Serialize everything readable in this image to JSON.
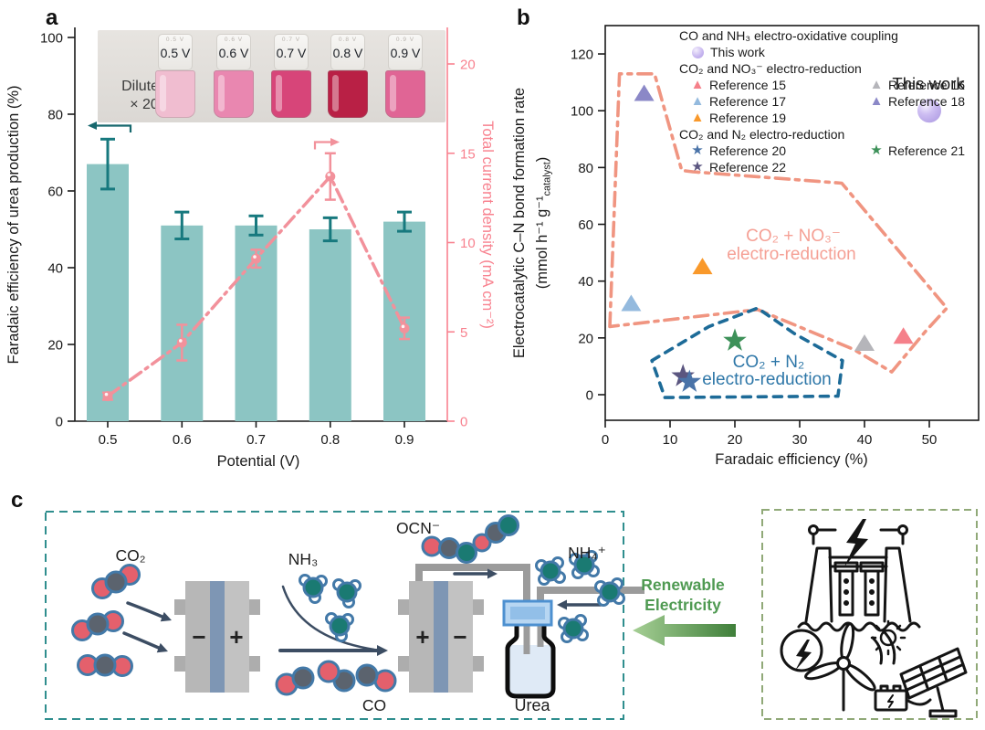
{
  "panels": {
    "a": "a",
    "b": "b",
    "c": "c"
  },
  "panel_a": {
    "inset": {
      "note_line1": "Diluted",
      "note_line2": "× 20",
      "vials": [
        {
          "label": "0.5 V",
          "liquid_color": "#f0bdd0"
        },
        {
          "label": "0.6 V",
          "liquid_color": "#e987b0"
        },
        {
          "label": "0.7 V",
          "liquid_color": "#d74579"
        },
        {
          "label": "0.8 V",
          "liquid_color": "#b92045"
        },
        {
          "label": "0.9 V",
          "liquid_color": "#e06595"
        }
      ]
    }
  },
  "chart_data": [
    {
      "panel": "a",
      "type": "bar",
      "categories": [
        "0.5",
        "0.6",
        "0.7",
        "0.8",
        "0.9"
      ],
      "xlabel": "Potential (V)",
      "ylabel_left": "Faradaic efficiency of urea production (%)",
      "ylabel_right": "Total current density (mA cm⁻²)",
      "ylim_left": [
        0,
        102
      ],
      "yticks_left": [
        0,
        20,
        40,
        60,
        80,
        100
      ],
      "ylim_right": [
        0,
        22
      ],
      "yticks_right": [
        0,
        5,
        10,
        15,
        20
      ],
      "series": [
        {
          "name": "Faradaic efficiency",
          "type": "bar",
          "axis": "left",
          "color": "#8cc5c3",
          "error_color": "#17797e",
          "values": [
            67,
            51,
            51,
            50,
            52
          ],
          "errors": [
            6.5,
            3.5,
            2.5,
            3,
            2.5
          ]
        },
        {
          "name": "Total current density",
          "type": "line",
          "axis": "right",
          "color": "#f2919b",
          "values": [
            1.4,
            4.4,
            9.1,
            13.7,
            5.2
          ],
          "errors": [
            0.2,
            1.0,
            0.5,
            1.3,
            0.6
          ]
        }
      ]
    },
    {
      "panel": "b",
      "type": "scatter",
      "xlabel": "Faradaic efficiency (%)",
      "ylabel_line1": "Electrocatalytic C–N bond formation rate",
      "ylabel_line2_pre": "(mmol h⁻¹ g⁻¹",
      "ylabel_line2_sub": "catalyst",
      "ylabel_line2_post": ")",
      "annotation": "This work",
      "xlim": [
        0,
        57.5
      ],
      "xticks": [
        0,
        10,
        20,
        30,
        40,
        50
      ],
      "ylim": [
        -9,
        130
      ],
      "yticks": [
        0,
        20,
        40,
        60,
        80,
        100,
        120
      ],
      "points": [
        {
          "label": "Reference 15",
          "group": "CO₂ and NO₃⁻ electro-reduction",
          "marker": "triangle",
          "color": "#f5808a",
          "x": 46,
          "y": 20.5
        },
        {
          "label": "Reference 16",
          "group": "CO₂ and NO₃⁻ electro-reduction",
          "marker": "triangle",
          "color": "#b5b5ba",
          "x": 40,
          "y": 18
        },
        {
          "label": "Reference 17",
          "group": "CO₂ and NO₃⁻ electro-reduction",
          "marker": "triangle",
          "color": "#94bade",
          "x": 4,
          "y": 32
        },
        {
          "label": "Reference 18",
          "group": "CO₂ and NO₃⁻ electro-reduction",
          "marker": "triangle",
          "color": "#8b88c7",
          "x": 6,
          "y": 106
        },
        {
          "label": "Reference 19",
          "group": "CO₂ and NO₃⁻ electro-reduction",
          "marker": "triangle",
          "color": "#f9992b",
          "x": 15,
          "y": 45
        },
        {
          "label": "Reference 22",
          "group": "CO₂ and N₂ electro-reduction",
          "marker": "star",
          "color": "#5b5680",
          "x": 12,
          "y": 6.5
        },
        {
          "label": "Reference 21",
          "group": "CO₂ and N₂ electro-reduction",
          "marker": "star",
          "color": "#3d9159",
          "x": 20,
          "y": 19
        },
        {
          "label": "Reference 20",
          "group": "CO₂ and N₂ electro-reduction",
          "marker": "star",
          "color": "#4a73a8",
          "x": 13,
          "y": 4.5
        },
        {
          "label": "This work",
          "group": "CO and NH₃ electro-oxidative coupling",
          "marker": "sphere",
          "color": "#c6b5ef",
          "x": 50,
          "y": 100
        }
      ],
      "regions": [
        {
          "name": "CO2 + NO3- electro-reduction",
          "label_line1": "CO₂ + NO₃⁻",
          "label_line2": "electro-reduction",
          "style": "dashdot",
          "color": "#f09581",
          "label_color": "#f5a095",
          "polygon": [
            [
              0.7,
              24
            ],
            [
              2.2,
              113
            ],
            [
              7.6,
              113
            ],
            [
              11.8,
              79
            ],
            [
              13.5,
              78.5
            ],
            [
              36.5,
              74.5
            ],
            [
              52.7,
              30.5
            ],
            [
              49.3,
              22
            ],
            [
              44.2,
              8
            ],
            [
              38.3,
              16
            ],
            [
              23.5,
              30
            ]
          ]
        },
        {
          "name": "CO2 + N2 electro-reduction",
          "label_line1": "CO₂ + N₂",
          "label_line2": "electro-reduction",
          "style": "dashed",
          "color": "#1d6b98",
          "label_color": "#2e77a8",
          "polygon": [
            [
              7.2,
              12
            ],
            [
              16,
              24
            ],
            [
              23.5,
              30.5
            ],
            [
              29.2,
              21.5
            ],
            [
              36.6,
              12
            ],
            [
              35.9,
              -0.5
            ],
            [
              9.2,
              -1
            ]
          ]
        }
      ],
      "legend": {
        "groups": [
          {
            "header": "CO and NH₃ electro-oxidative coupling",
            "entries": [
              {
                "marker": "sphere",
                "color": "#c6b5ef",
                "label": "This work"
              }
            ]
          },
          {
            "header": "CO₂ and NO₃⁻ electro-reduction",
            "entries": [
              {
                "marker": "triangle",
                "color": "#f5808a",
                "label": "Reference 15"
              },
              {
                "marker": "triangle",
                "color": "#b5b5ba",
                "label": "Reference 16"
              },
              {
                "marker": "triangle",
                "color": "#94bade",
                "label": "Reference 17"
              },
              {
                "marker": "triangle",
                "color": "#8b88c7",
                "label": "Reference 18"
              },
              {
                "marker": "triangle",
                "color": "#f9992b",
                "label": "Reference 19"
              }
            ]
          },
          {
            "header": "CO₂ and N₂ electro-reduction",
            "entries": [
              {
                "marker": "star",
                "color": "#4a73a8",
                "label": "Reference 20"
              },
              {
                "marker": "star",
                "color": "#3d9159",
                "label": "Reference 21"
              },
              {
                "marker": "star",
                "color": "#5b5680",
                "label": "Reference 22"
              }
            ]
          }
        ]
      }
    }
  ],
  "panel_c": {
    "labels": {
      "co2": "CO₂",
      "nh3": "NH₃",
      "co": "CO",
      "ocn": "OCN⁻",
      "nh4": "NH₄⁺",
      "urea": "Urea",
      "cell1_left": "−",
      "cell1_right": "+",
      "cell2_left": "+",
      "cell2_right": "−",
      "renewable_line1": "Renewable",
      "renewable_line2": "Electricity"
    },
    "colors": {
      "box_left_border": "#2f8e8e",
      "box_right_border": "#90a978",
      "renewable_text": "#4f9a52",
      "arrow_green_dark": "#3f7f3a",
      "arrow_green_light": "#a6cf95",
      "molecule_o": "#e4606c",
      "molecule_c": "#5b636e",
      "molecule_n": "#1a7a72",
      "molecule_outline": "#4379a8",
      "cell_body": "#bcbcbc",
      "cell_membrane": "#7e96b4",
      "pipe": "#9b9b9b",
      "flow_arrow": "#3c4d63",
      "bottle_cap": "#b7d6f2",
      "bottle_liquid": "#dfeaf6"
    }
  }
}
